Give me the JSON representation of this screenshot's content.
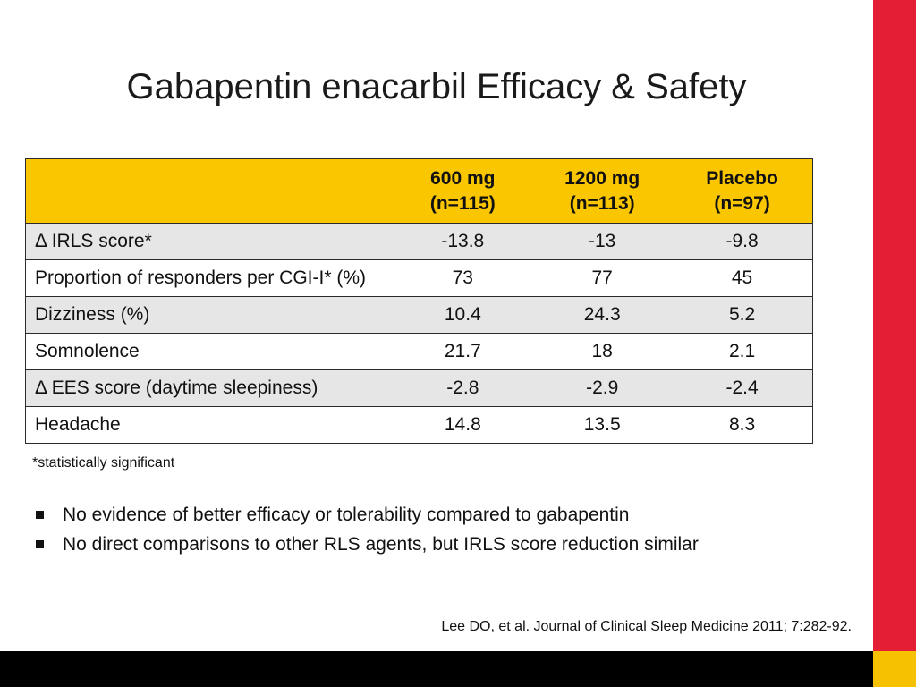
{
  "title": "Gabapentin enacarbil Efficacy & Safety",
  "table": {
    "headers": [
      {
        "line1": "",
        "line2": ""
      },
      {
        "line1": "600 mg",
        "line2": "(n=115)"
      },
      {
        "line1": "1200 mg",
        "line2": "(n=113)"
      },
      {
        "line1": "Placebo",
        "line2": "(n=97)"
      }
    ],
    "rows": [
      [
        "Δ IRLS score*",
        "-13.8",
        "-13",
        "-9.8"
      ],
      [
        "Proportion of responders per CGI-I* (%)",
        "73",
        "77",
        "45"
      ],
      [
        "Dizziness (%)",
        "10.4",
        "24.3",
        "5.2"
      ],
      [
        "Somnolence",
        "21.7",
        "18",
        "2.1"
      ],
      [
        "Δ EES score (daytime sleepiness)",
        "-2.8",
        "-2.9",
        "-2.4"
      ],
      [
        "Headache",
        "14.8",
        "13.5",
        "8.3"
      ]
    ]
  },
  "footnote": "*statistically significant",
  "bullets": [
    "No evidence of better efficacy or tolerability compared to gabapentin",
    "No direct comparisons to other RLS agents, but IRLS score reduction similar"
  ],
  "citation": "Lee DO, et al. Journal of Clinical Sleep Medicine 2011; 7:282-92.",
  "colors": {
    "header_fill": "#f9c600",
    "accent_red": "#e41e34",
    "accent_yellow": "#f6c100",
    "footer_bar": "#000000",
    "row_shade": "#e6e6e6"
  }
}
